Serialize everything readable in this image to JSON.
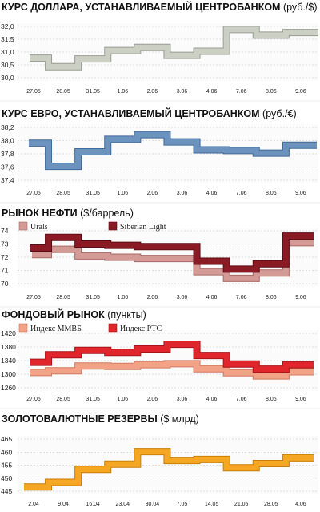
{
  "chart_data": [
    {
      "type": "line",
      "title": "КУРС ДОЛЛАРА, УСТАНАВЛИВАЕМЫЙ ЦЕНТРОБАНКОМ",
      "unit": "(руб./$)",
      "ylim": [
        30.0,
        32.0
      ],
      "yticks": [
        "32,0",
        "31,5",
        "31,0",
        "30,5",
        "30,0"
      ],
      "ytick_values": [
        32.0,
        31.5,
        31.0,
        30.5,
        30.0
      ],
      "xticks": [
        "27.05",
        "28.05",
        "31.05",
        "1.06",
        "2.06",
        "3.06",
        "4.06",
        "7.06",
        "8.06",
        "9.06"
      ],
      "grid": true,
      "series": [
        {
          "values": [
            30.76,
            30.43,
            30.73,
            31.06,
            31.18,
            30.87,
            31.03,
            31.88,
            31.66,
            31.76
          ],
          "color": "#cccfc4",
          "edge": "#9a9c92"
        }
      ]
    },
    {
      "type": "line",
      "title": "КУРС ЕВРО, УСТАНАВЛИВАЕМЫЙ ЦЕНТРОБАНКОМ",
      "unit": "(руб./€)",
      "ylim": [
        37.4,
        38.2
      ],
      "yticks": [
        "38,2",
        "38,0",
        "37,8",
        "37,6",
        "37,4"
      ],
      "ytick_values": [
        38.2,
        38.0,
        37.8,
        37.6,
        37.4
      ],
      "xticks": [
        "27.05",
        "28.05",
        "31.05",
        "1.06",
        "2.06",
        "3.06",
        "4.06",
        "7.06",
        "8.06",
        "9.06"
      ],
      "grid": true,
      "series": [
        {
          "values": [
            37.96,
            37.61,
            37.83,
            38.02,
            38.09,
            37.98,
            37.86,
            37.85,
            37.81,
            37.93
          ],
          "color": "#6c93be",
          "edge": "#3f6a99"
        }
      ]
    },
    {
      "type": "line",
      "title": "РЫНОК НЕФТИ",
      "unit": "($/баррель)",
      "ylim": [
        70,
        74
      ],
      "yticks": [
        "74",
        "73",
        "72",
        "71",
        "70"
      ],
      "ytick_values": [
        74,
        73,
        72,
        71,
        70
      ],
      "xticks": [
        "27.05",
        "28.05",
        "31.05",
        "1.06",
        "2.06",
        "3.06",
        "4.06",
        "7.06",
        "8.06",
        "9.06"
      ],
      "grid": true,
      "legend": "top-left",
      "series": [
        {
          "name": "Urals",
          "values": [
            72.2,
            72.6,
            72.1,
            72.0,
            71.9,
            71.9,
            70.9,
            70.4,
            70.8,
            73.1
          ],
          "color": "#d49a95",
          "edge": "#a86a66"
        },
        {
          "name": "Siberian Light",
          "values": [
            72.7,
            73.5,
            73.0,
            72.9,
            72.8,
            72.8,
            71.7,
            71.1,
            71.5,
            73.6
          ],
          "color": "#8a1a24",
          "edge": "#5e0c14"
        }
      ]
    },
    {
      "type": "line",
      "title": "ФОНДОВЫЙ РЫНОК",
      "unit": "(пункты)",
      "ylim": [
        1260,
        1420
      ],
      "yticks": [
        "1420",
        "1380",
        "1340",
        "1300",
        "1260"
      ],
      "ytick_values": [
        1420,
        1380,
        1340,
        1300,
        1260
      ],
      "xticks": [
        "27.05",
        "28.05",
        "31.05",
        "1.06",
        "2.06",
        "3.06",
        "4.06",
        "7.06",
        "8.06",
        "9.06"
      ],
      "grid": true,
      "legend": "top-left",
      "series": [
        {
          "name": "Индекс ММВБ",
          "values": [
            1305,
            1310,
            1324,
            1323,
            1328,
            1331,
            1316,
            1304,
            1295,
            1307
          ],
          "color": "#f2a287",
          "edge": "#d17a5e"
        },
        {
          "name": "Индекс РТС",
          "values": [
            1335,
            1357,
            1370,
            1364,
            1374,
            1388,
            1355,
            1330,
            1315,
            1328
          ],
          "color": "#e0262c",
          "edge": "#a8141a"
        }
      ]
    },
    {
      "type": "line",
      "title": "ЗОЛОТОВАЛЮТНЫЕ РЕЗЕРВЫ",
      "unit": "($ млрд)",
      "ylim": [
        445,
        465
      ],
      "yticks": [
        "465",
        "460",
        "455",
        "450",
        "445"
      ],
      "ytick_values": [
        465,
        460,
        455,
        450,
        445
      ],
      "xticks": [
        "2.04",
        "9.04",
        "16.04",
        "23.04",
        "30.04",
        "7.05",
        "14.05",
        "21.05",
        "28.05",
        "4.06"
      ],
      "grid": true,
      "series": [
        {
          "values": [
            446.6,
            448.4,
            453.4,
            455.4,
            460.2,
            456.8,
            457.2,
            454.0,
            455.6,
            457.8
          ],
          "color": "#f5a623",
          "edge": "#c97e06"
        }
      ]
    }
  ]
}
